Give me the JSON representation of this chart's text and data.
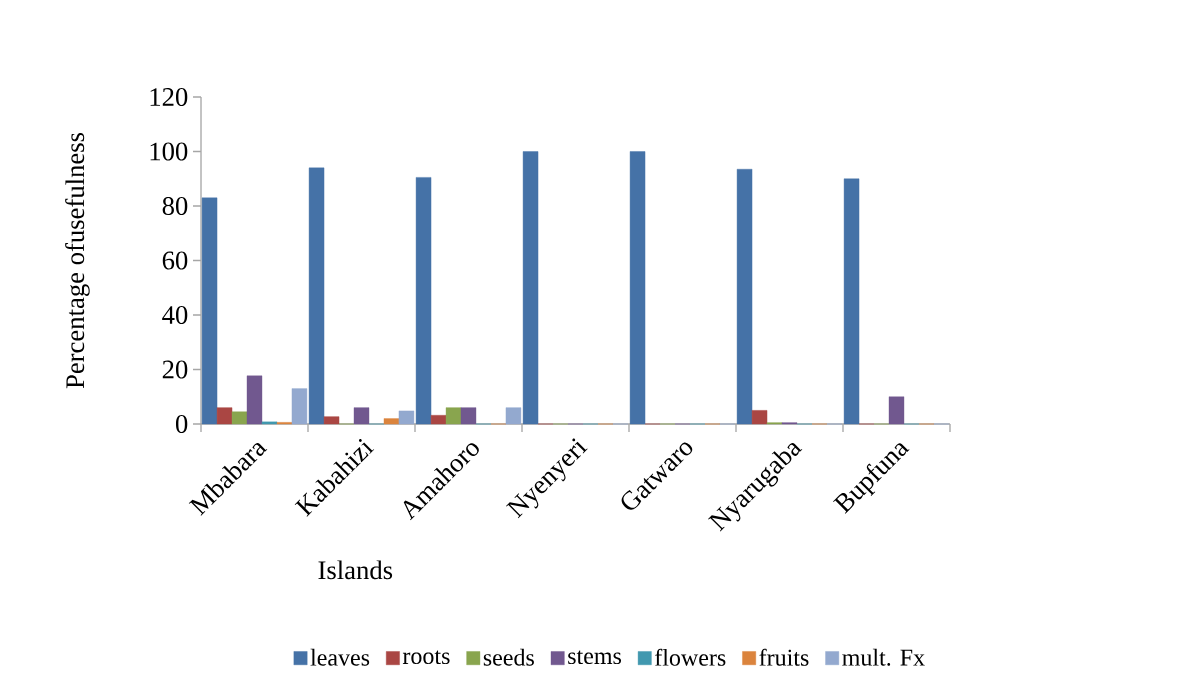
{
  "chart_data": {
    "type": "bar",
    "xlabel": "Islands",
    "ylabel": "Percentage ofusefulness",
    "categories": [
      "Mbabara",
      "Kabahizi",
      "Amahoro",
      "Nyenyeri",
      "Gatwaro",
      "Nyarugaba",
      "Bupfuna"
    ],
    "series": [
      {
        "name": "leaves",
        "color": "#4572a7",
        "values": [
          83,
          94,
          90.5,
          100,
          100,
          93.5,
          90
        ]
      },
      {
        "name": "roots",
        "color": "#aa4643",
        "values": [
          6,
          2.7,
          3.2,
          0,
          0,
          5,
          0
        ]
      },
      {
        "name": "seeds",
        "color": "#89a54e",
        "values": [
          4.5,
          0,
          6,
          0,
          0,
          0.5,
          0
        ]
      },
      {
        "name": "stems",
        "color": "#71588f",
        "values": [
          17.7,
          6,
          6,
          0,
          0,
          0.5,
          10
        ]
      },
      {
        "name": "flowers",
        "color": "#4198af",
        "values": [
          0.8,
          0,
          0,
          0,
          0,
          0,
          0
        ]
      },
      {
        "name": "fruits",
        "color": "#db843d",
        "values": [
          0.6,
          2,
          0,
          0,
          0,
          0,
          0
        ]
      },
      {
        "name": "mult. Fx",
        "color": "#93a9cf",
        "values": [
          13,
          4.8,
          6,
          0,
          0,
          0,
          0
        ]
      }
    ],
    "ylim": [
      0,
      120
    ],
    "yticks": [
      0,
      20,
      40,
      60,
      80,
      100,
      120
    ],
    "grid": false,
    "legend": "bottom"
  }
}
